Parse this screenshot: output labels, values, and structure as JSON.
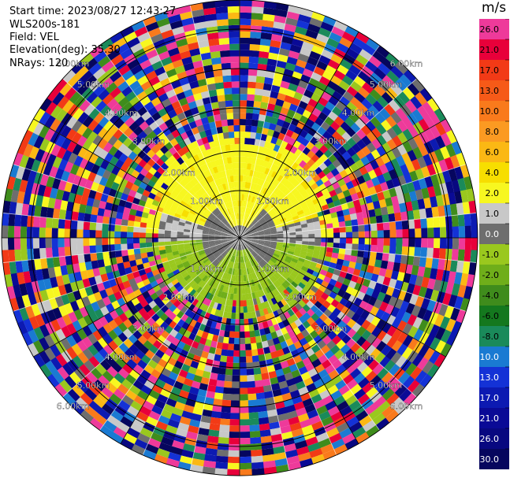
{
  "header": {
    "start_time": "Start time: 2023/08/27 12:43:27",
    "instrument": "WLS200s-181",
    "field": "Field: VEL",
    "elevation": "Elevation(deg): 35.30",
    "nrays": "NRays: 120"
  },
  "colorbar": {
    "unit": "m/s",
    "levels": [
      {
        "label": "26.0",
        "color": "#ee3a9a"
      },
      {
        "label": "21.0",
        "color": "#e8003a"
      },
      {
        "label": "17.0",
        "color": "#f23a16"
      },
      {
        "label": "13.0",
        "color": "#f65a18"
      },
      {
        "label": "10.0",
        "color": "#f97a1c"
      },
      {
        "label": "8.0",
        "color": "#fb9a22"
      },
      {
        "label": "6.0",
        "color": "#fbb814"
      },
      {
        "label": "4.0",
        "color": "#f7de00"
      },
      {
        "label": "2.0",
        "color": "#f7f720"
      },
      {
        "label": "1.0",
        "color": "#c8c8c8"
      },
      {
        "label": "0.0",
        "color": "#6e6e6e"
      },
      {
        "label": "-1.0",
        "color": "#9ac81e"
      },
      {
        "label": "-2.0",
        "color": "#6fae1a"
      },
      {
        "label": "-4.0",
        "color": "#3f8c1c"
      },
      {
        "label": "-6.0",
        "color": "#14781e"
      },
      {
        "label": "-8.0",
        "color": "#1a8a5a"
      },
      {
        "label": "-10.0",
        "color": "#1a7ad2"
      },
      {
        "label": "-13.0",
        "color": "#1432d6"
      },
      {
        "label": "-17.0",
        "color": "#0c1ab2"
      },
      {
        "label": "-21.0",
        "color": "#0a0a96"
      },
      {
        "label": "-26.0",
        "color": "#080880"
      },
      {
        "label": "-30.0",
        "color": "#06065e"
      }
    ]
  },
  "chart_data": {
    "type": "heatmap",
    "projection": "polar PPI",
    "field": "VEL",
    "range_rings_km": [
      "1.00km",
      "2.00km",
      "3.00km",
      "4.00km",
      "5.00km",
      "6.00km"
    ],
    "grid": true,
    "legend_placement": "right",
    "vmin": -30.0,
    "vmax": 26.0
  }
}
